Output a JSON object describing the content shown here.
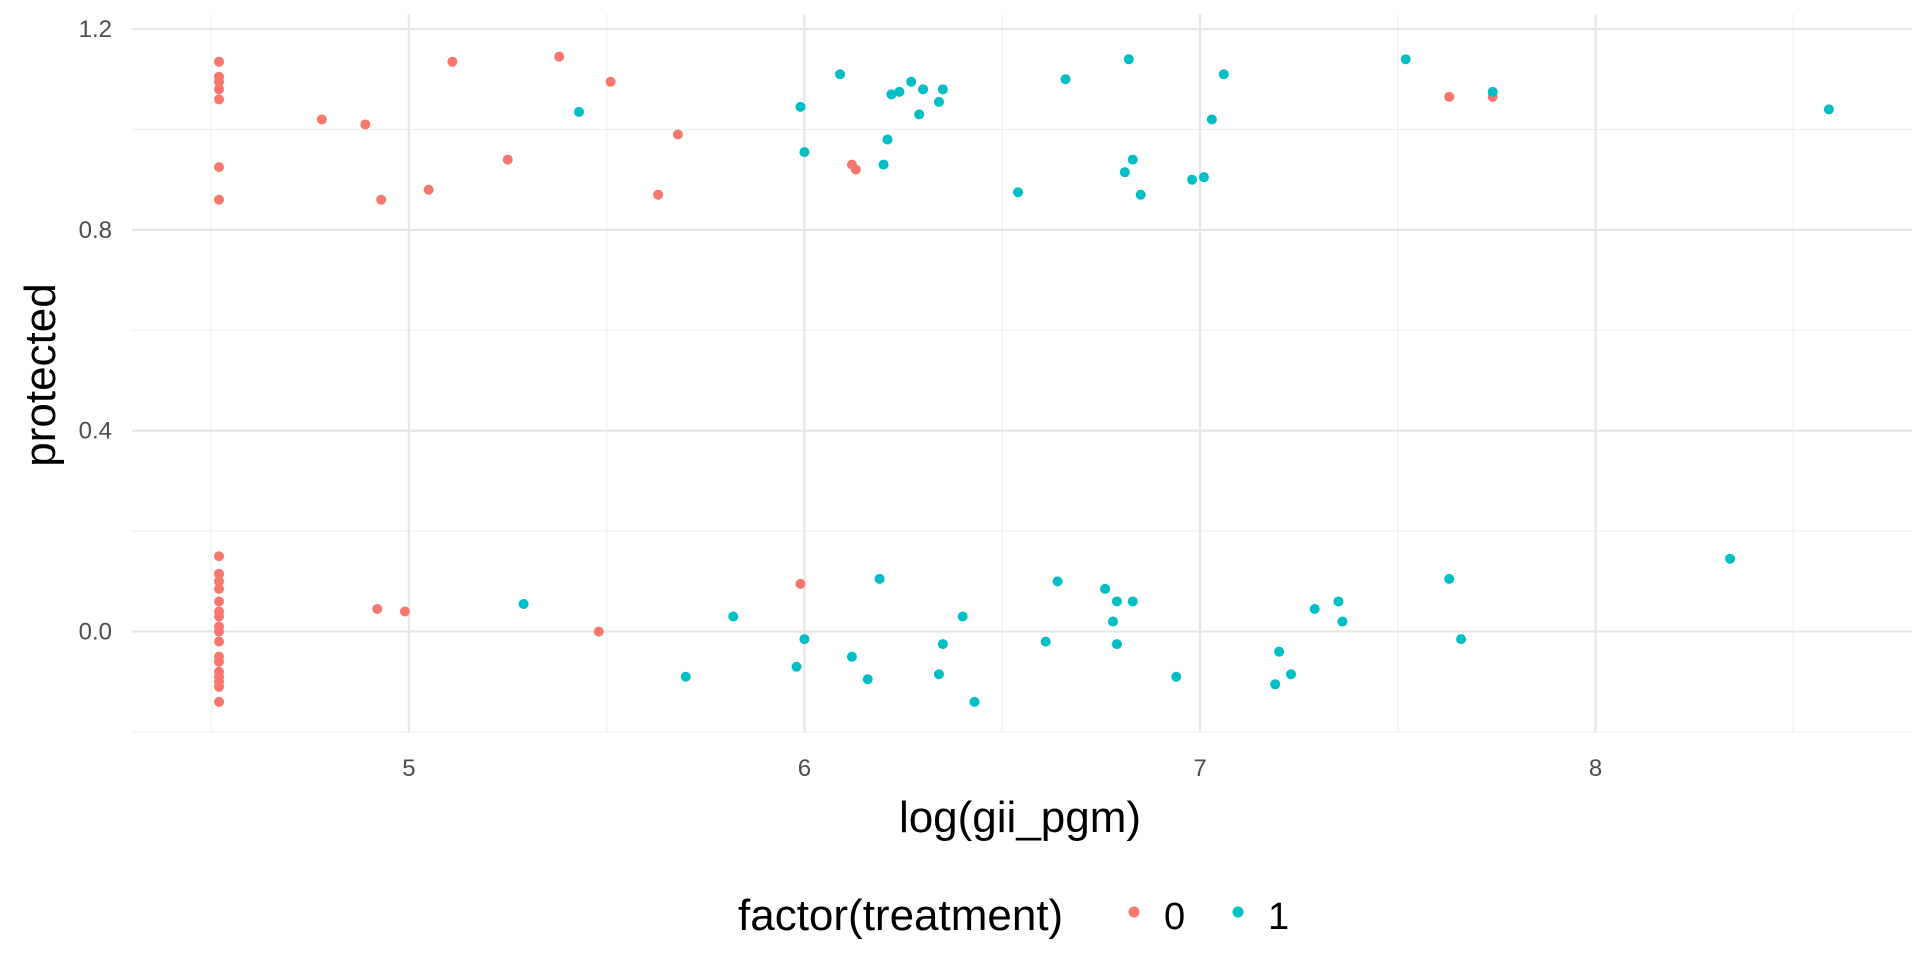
{
  "chart_data": {
    "type": "scatter",
    "xlabel": "log(gii_pgm)",
    "ylabel": "protected",
    "xlim": [
      4.3,
      8.8
    ],
    "ylim": [
      -0.2,
      1.23
    ],
    "xticks": [
      5,
      6,
      7,
      8
    ],
    "xtick_labels": [
      "5",
      "6",
      "7",
      "8"
    ],
    "yticks": [
      0.0,
      0.4,
      0.8,
      1.2
    ],
    "ytick_labels": [
      "0.0",
      "0.4",
      "0.8",
      "1.2"
    ],
    "grid": true,
    "legend": {
      "title": "factor(treatment)",
      "position": "bottom",
      "entries": [
        "0",
        "1"
      ]
    },
    "series": [
      {
        "name": "0",
        "color": "#F8766D",
        "points": [
          [
            4.52,
            1.135
          ],
          [
            4.52,
            1.105
          ],
          [
            4.52,
            1.095
          ],
          [
            4.52,
            1.08
          ],
          [
            4.52,
            1.06
          ],
          [
            4.52,
            0.925
          ],
          [
            4.52,
            0.86
          ],
          [
            4.78,
            1.02
          ],
          [
            4.89,
            1.01
          ],
          [
            4.93,
            0.86
          ],
          [
            5.05,
            0.88
          ],
          [
            5.11,
            1.135
          ],
          [
            5.25,
            0.94
          ],
          [
            5.38,
            1.145
          ],
          [
            5.51,
            1.095
          ],
          [
            5.63,
            0.87
          ],
          [
            5.68,
            0.99
          ],
          [
            6.12,
            0.93
          ],
          [
            6.13,
            0.92
          ],
          [
            7.63,
            1.065
          ],
          [
            7.74,
            1.065
          ],
          [
            4.52,
            0.15
          ],
          [
            4.52,
            0.115
          ],
          [
            4.52,
            0.1
          ],
          [
            4.52,
            0.085
          ],
          [
            4.52,
            0.06
          ],
          [
            4.52,
            0.04
          ],
          [
            4.52,
            0.03
          ],
          [
            4.52,
            0.01
          ],
          [
            4.52,
            0.0
          ],
          [
            4.52,
            -0.02
          ],
          [
            4.52,
            -0.05
          ],
          [
            4.52,
            -0.06
          ],
          [
            4.52,
            -0.08
          ],
          [
            4.52,
            -0.09
          ],
          [
            4.52,
            -0.1
          ],
          [
            4.52,
            -0.11
          ],
          [
            4.52,
            -0.14
          ],
          [
            4.92,
            0.045
          ],
          [
            4.99,
            0.04
          ],
          [
            5.48,
            0.0
          ],
          [
            5.99,
            0.095
          ]
        ]
      },
      {
        "name": "1",
        "color": "#00BFC4",
        "points": [
          [
            5.43,
            1.035
          ],
          [
            5.99,
            1.045
          ],
          [
            6.0,
            0.955
          ],
          [
            6.09,
            1.11
          ],
          [
            6.2,
            0.93
          ],
          [
            6.21,
            0.98
          ],
          [
            6.22,
            1.07
          ],
          [
            6.24,
            1.075
          ],
          [
            6.27,
            1.095
          ],
          [
            6.29,
            1.03
          ],
          [
            6.3,
            1.08
          ],
          [
            6.34,
            1.055
          ],
          [
            6.35,
            1.08
          ],
          [
            6.54,
            0.875
          ],
          [
            6.66,
            1.1
          ],
          [
            6.81,
            0.915
          ],
          [
            6.82,
            1.14
          ],
          [
            6.83,
            0.94
          ],
          [
            6.85,
            0.87
          ],
          [
            6.98,
            0.9
          ],
          [
            7.01,
            0.905
          ],
          [
            7.03,
            1.02
          ],
          [
            7.06,
            1.11
          ],
          [
            7.52,
            1.14
          ],
          [
            7.74,
            1.075
          ],
          [
            8.59,
            1.04
          ],
          [
            5.29,
            0.055
          ],
          [
            5.7,
            -0.09
          ],
          [
            5.82,
            0.03
          ],
          [
            5.98,
            -0.07
          ],
          [
            6.0,
            -0.015
          ],
          [
            6.12,
            -0.05
          ],
          [
            6.16,
            -0.095
          ],
          [
            6.19,
            0.105
          ],
          [
            6.34,
            -0.085
          ],
          [
            6.35,
            -0.025
          ],
          [
            6.4,
            0.03
          ],
          [
            6.43,
            -0.14
          ],
          [
            6.61,
            -0.02
          ],
          [
            6.64,
            0.1
          ],
          [
            6.76,
            0.085
          ],
          [
            6.78,
            0.02
          ],
          [
            6.79,
            0.06
          ],
          [
            6.79,
            -0.025
          ],
          [
            6.83,
            0.06
          ],
          [
            6.94,
            -0.09
          ],
          [
            7.19,
            -0.105
          ],
          [
            7.2,
            -0.04
          ],
          [
            7.23,
            -0.085
          ],
          [
            7.29,
            0.045
          ],
          [
            7.35,
            0.06
          ],
          [
            7.36,
            0.02
          ],
          [
            7.63,
            0.105
          ],
          [
            7.66,
            -0.015
          ],
          [
            8.34,
            0.145
          ]
        ]
      }
    ]
  }
}
